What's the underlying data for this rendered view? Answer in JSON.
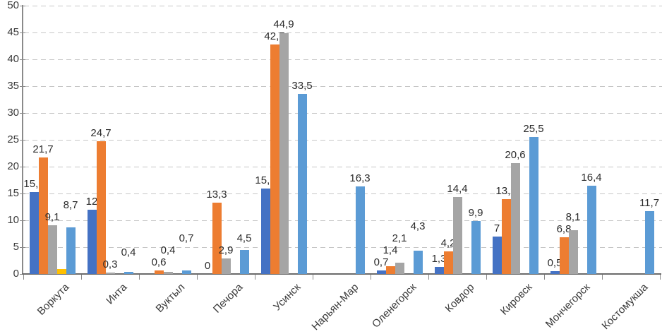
{
  "chart_data": {
    "type": "bar",
    "title": "",
    "xlabel": "",
    "ylabel": "",
    "categories": [
      "Воркута",
      "Инта",
      "Вуктыл",
      "Печора",
      "Усинск",
      "Нарьян-Мар",
      "Оленегорск",
      "Ковдор",
      "Кировск",
      "Мончегорск",
      "Костомукша"
    ],
    "series": [
      {
        "name": "dark-blue",
        "color": "#4472C4",
        "values": [
          15.2,
          12,
          0,
          0,
          15.9,
          0,
          0.7,
          1.3,
          7,
          0.5,
          0
        ],
        "labels": [
          "15,2",
          "12",
          "",
          "0",
          "15,9",
          "",
          "0,7",
          "1,3",
          "7",
          "0,5",
          ""
        ]
      },
      {
        "name": "orange",
        "color": "#ED7D31",
        "values": [
          21.7,
          24.7,
          0.6,
          13.3,
          42.7,
          0,
          1.4,
          4.2,
          13.9,
          6.8,
          0
        ],
        "labels": [
          "21,7",
          "24,7",
          "0,6",
          "13,3",
          "42,7",
          "",
          "1,4",
          "4,2",
          "13,9",
          "6,8",
          ""
        ]
      },
      {
        "name": "gray",
        "color": "#A5A5A5",
        "values": [
          9.1,
          0.3,
          0.4,
          2.9,
          44.9,
          0,
          2.1,
          14.4,
          20.6,
          8.1,
          0
        ],
        "labels": [
          "9,1",
          "0,3",
          "0,4",
          "2,9",
          "44,9",
          "",
          "2,1",
          "14,4",
          "20,6",
          "8,1",
          ""
        ]
      },
      {
        "name": "yellow",
        "color": "#FFC000",
        "values": [
          0.9,
          0,
          0,
          0,
          0,
          0,
          0,
          0,
          0,
          0,
          0
        ],
        "labels": [
          "",
          "",
          "",
          "",
          "",
          "",
          "",
          "",
          "",
          "",
          ""
        ]
      },
      {
        "name": "light-blue",
        "color": "#5B9BD5",
        "values": [
          8.7,
          0.4,
          0.7,
          4.5,
          33.5,
          16.3,
          4.3,
          9.9,
          25.5,
          16.4,
          11.7
        ],
        "labels": [
          "8,7",
          "0,4",
          "0,7",
          "4,5",
          "33,5",
          "16,3",
          "4,3",
          "9,9",
          "25,5",
          "16,4",
          "11,7"
        ]
      }
    ],
    "ylim": [
      0,
      50
    ],
    "yticks": [
      0,
      5,
      10,
      15,
      20,
      25,
      30,
      35,
      40,
      45,
      50
    ],
    "grid": "horizontal-dashed",
    "legend": "none",
    "decimal_separator": ","
  },
  "colors": {
    "background": "#FFFFFF",
    "gridline": "#C6C6C6",
    "axis": "#8A8A8A",
    "text": "#3A3A3A"
  }
}
